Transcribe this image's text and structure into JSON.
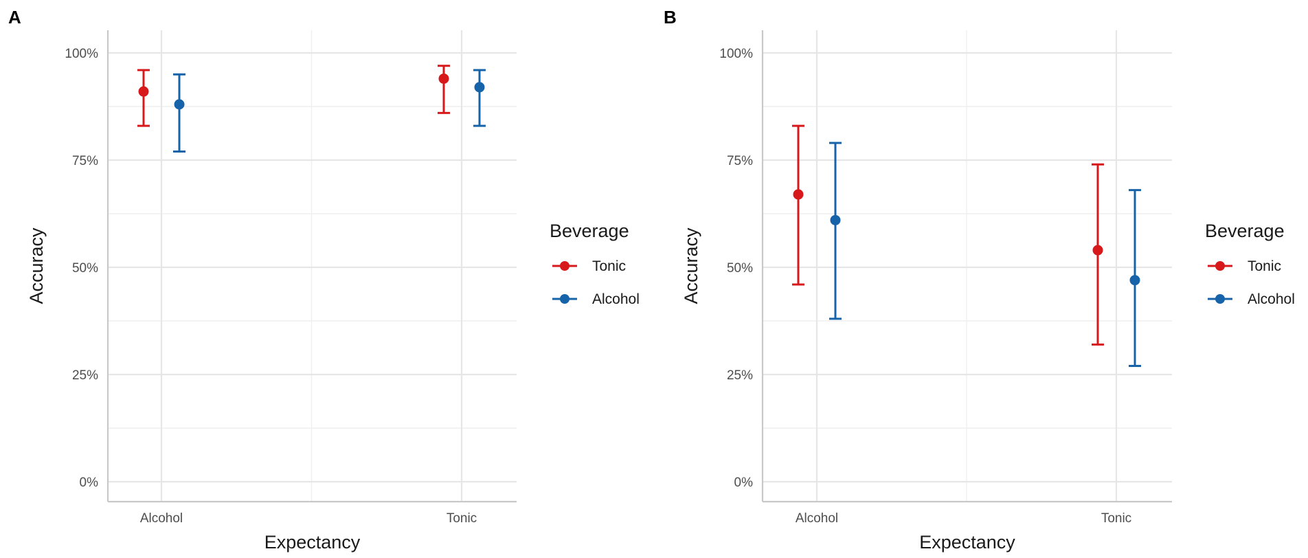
{
  "chart_data": [
    {
      "panel": "A",
      "type": "errorbar",
      "xlabel": "Expectancy",
      "ylabel": "Accuracy",
      "categories": [
        "Alcohol",
        "Tonic"
      ],
      "yticks": [
        "0%",
        "25%",
        "50%",
        "75%",
        "100%"
      ],
      "ylim": [
        0,
        100
      ],
      "legend": {
        "title": "Beverage",
        "position": "right"
      },
      "series": [
        {
          "name": "Tonic",
          "color": "#d7191c",
          "means": [
            91,
            94
          ],
          "lower": [
            83,
            86
          ],
          "upper": [
            96,
            97
          ]
        },
        {
          "name": "Alcohol",
          "color": "#1763aa",
          "means": [
            88,
            92
          ],
          "lower": [
            77,
            83
          ],
          "upper": [
            95,
            96
          ]
        }
      ]
    },
    {
      "panel": "B",
      "type": "errorbar",
      "xlabel": "Expectancy",
      "ylabel": "Accuracy",
      "categories": [
        "Alcohol",
        "Tonic"
      ],
      "yticks": [
        "0%",
        "25%",
        "50%",
        "75%",
        "100%"
      ],
      "ylim": [
        0,
        100
      ],
      "legend": {
        "title": "Beverage",
        "position": "right"
      },
      "series": [
        {
          "name": "Tonic",
          "color": "#d7191c",
          "means": [
            67,
            54
          ],
          "lower": [
            46,
            32
          ],
          "upper": [
            83,
            74
          ]
        },
        {
          "name": "Alcohol",
          "color": "#1763aa",
          "means": [
            61,
            47
          ],
          "lower": [
            38,
            27
          ],
          "upper": [
            79,
            68
          ]
        }
      ]
    }
  ]
}
